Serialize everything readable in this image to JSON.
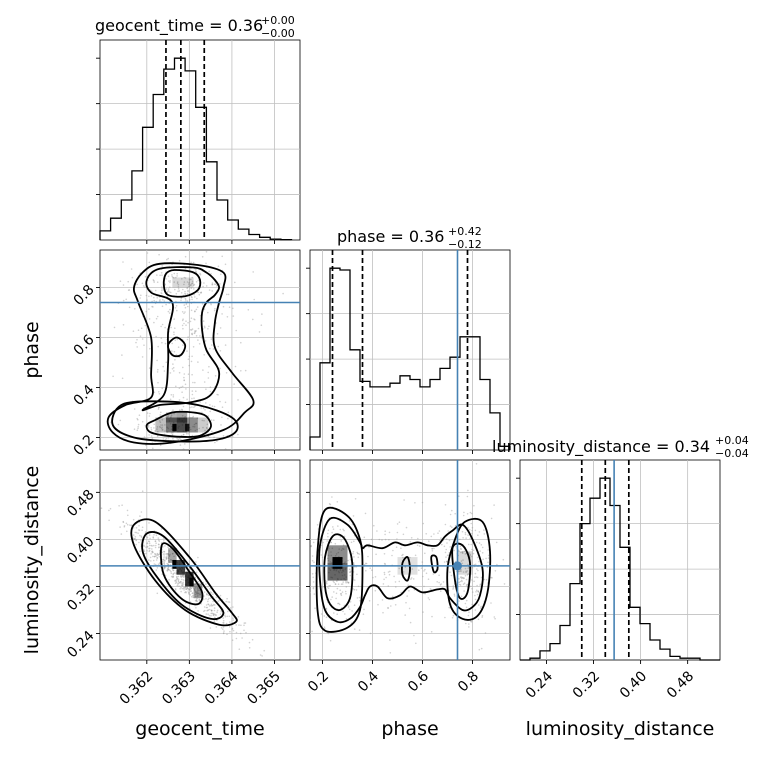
{
  "chart_data": {
    "type": "corner",
    "grid": true,
    "colors": {
      "truth": "#4682b4",
      "hist": "#000000",
      "quantile": "#000000",
      "grid": "#c0c0c0",
      "scatter": "#9a9a9a",
      "density_dark": "#000000"
    },
    "parameters": [
      "geocent_time",
      "phase",
      "luminosity_distance"
    ],
    "truths": {
      "geocent_time": null,
      "phase": 0.74,
      "luminosity_distance": 0.355
    },
    "titles": [
      {
        "param": "geocent_time",
        "label": "geocent_time = 0.36",
        "sup": "+0.00",
        "sub": "−0.00"
      },
      {
        "param": "phase",
        "label": "phase = 0.36",
        "sup": "+0.42",
        "sub": "−0.12"
      },
      {
        "param": "luminosity_distance",
        "label": "luminosity_distance = 0.34",
        "sup": "+0.04",
        "sub": "−0.04"
      }
    ],
    "axis_labels": {
      "geocent_time": "geocent_time",
      "phase": "phase",
      "luminosity_distance": "luminosity_distance"
    },
    "ranges": {
      "geocent_time": [
        0.3609,
        0.3656
      ],
      "phase": [
        0.15,
        0.95
      ],
      "luminosity_distance": [
        0.195,
        0.535
      ]
    },
    "ticks": {
      "geocent_time": [
        "0.362",
        "0.363",
        "0.364",
        "0.365"
      ],
      "phase_x": [
        "0.2",
        "0.4",
        "0.6",
        "0.8"
      ],
      "phase_y": [
        "0.2",
        "0.4",
        "0.6",
        "0.8"
      ],
      "luminosity_distance": [
        "0.24",
        "0.32",
        "0.40",
        "0.48"
      ]
    },
    "tick_values": {
      "geocent_time": [
        0.362,
        0.363,
        0.364,
        0.365
      ],
      "phase": [
        0.2,
        0.4,
        0.6,
        0.8
      ],
      "luminosity_distance": [
        0.24,
        0.32,
        0.4,
        0.48
      ]
    },
    "histograms": {
      "geocent_time": {
        "edges": [
          0.3609,
          0.36115,
          0.3614,
          0.36165,
          0.3619,
          0.36215,
          0.3624,
          0.36265,
          0.3629,
          0.36315,
          0.3634,
          0.36365,
          0.3639,
          0.36415,
          0.3644,
          0.36465,
          0.3649,
          0.36515,
          0.3654
        ],
        "counts": [
          5,
          12,
          22,
          38,
          62,
          80,
          94,
          100,
          93,
          73,
          43,
          22,
          11,
          6,
          3,
          1.5,
          0.5,
          0.2
        ],
        "quantiles": [
          0.36245,
          0.3628,
          0.36335
        ]
      },
      "phase": {
        "edges": [
          0.15,
          0.19,
          0.23,
          0.27,
          0.31,
          0.35,
          0.39,
          0.43,
          0.47,
          0.51,
          0.55,
          0.59,
          0.63,
          0.67,
          0.71,
          0.75,
          0.79,
          0.83,
          0.87,
          0.91,
          0.95
        ],
        "counts": [
          7,
          47,
          98,
          97,
          54,
          37,
          34,
          34,
          36,
          40,
          38,
          34,
          38,
          44,
          50,
          61,
          61,
          38,
          20,
          2
        ],
        "quantiles": [
          0.24,
          0.36,
          0.78
        ]
      },
      "luminosity_distance": {
        "edges": [
          0.195,
          0.212,
          0.229,
          0.246,
          0.263,
          0.28,
          0.297,
          0.314,
          0.331,
          0.348,
          0.365,
          0.382,
          0.399,
          0.416,
          0.433,
          0.45,
          0.467,
          0.484,
          0.501,
          0.518,
          0.535
        ],
        "counts": [
          0,
          1,
          5,
          9,
          19,
          42,
          75,
          89,
          100,
          85,
          62,
          29,
          20,
          11,
          6,
          2,
          1,
          1,
          0,
          0
        ],
        "quantiles": [
          0.3,
          0.34,
          0.38
        ]
      }
    },
    "contours": {
      "phase_vs_geocent_time": [
        {
          "level": 0.39,
          "x": [
            0.36245,
            0.36265,
            0.3631,
            0.36325,
            0.3632,
            0.3629,
            0.3625,
            0.3624,
            0.36245
          ],
          "y": [
            0.855,
            0.87,
            0.86,
            0.83,
            0.79,
            0.765,
            0.77,
            0.81,
            0.855
          ]
        },
        {
          "level": 0.39,
          "x": [
            0.3625,
            0.3627,
            0.3629,
            0.3628,
            0.3626,
            0.3625
          ],
          "y": [
            0.57,
            0.6,
            0.57,
            0.53,
            0.53,
            0.57
          ]
        },
        {
          "level": 0.39,
          "x": [
            0.3622,
            0.3626,
            0.3631,
            0.3634,
            0.3635,
            0.3632,
            0.3626,
            0.3621,
            0.362,
            0.3622
          ],
          "y": [
            0.27,
            0.3,
            0.3,
            0.285,
            0.24,
            0.205,
            0.205,
            0.22,
            0.25,
            0.27
          ]
        },
        {
          "level": 0.86,
          "x": [
            0.3623,
            0.3631,
            0.3634,
            0.3636,
            0.3637,
            0.3636,
            0.3634,
            0.3633,
            0.3633,
            0.3634,
            0.3637,
            0.3635,
            0.363,
            0.3623,
            0.3619,
            0.3624,
            0.3625,
            0.3625,
            0.3626,
            0.3621,
            0.362,
            0.3623
          ],
          "y": [
            0.875,
            0.88,
            0.86,
            0.83,
            0.8,
            0.77,
            0.74,
            0.7,
            0.63,
            0.55,
            0.46,
            0.37,
            0.34,
            0.33,
            0.31,
            0.37,
            0.5,
            0.62,
            0.74,
            0.78,
            0.83,
            0.875
          ]
        },
        {
          "level": 0.86,
          "x": [
            0.3614,
            0.3622,
            0.3632,
            0.364,
            0.3641,
            0.3636,
            0.3626,
            0.3617,
            0.3612,
            0.3614
          ],
          "y": [
            0.33,
            0.345,
            0.33,
            0.28,
            0.225,
            0.19,
            0.185,
            0.2,
            0.25,
            0.33
          ]
        },
        {
          "level": 0.96,
          "x": [
            0.3623,
            0.3632,
            0.3638,
            0.3638,
            0.3637,
            0.3636,
            0.3636,
            0.364,
            0.3645,
            0.3643,
            0.3638,
            0.3626,
            0.3617,
            0.3612,
            0.3611,
            0.3615,
            0.3621,
            0.3621,
            0.3621,
            0.3618,
            0.3617,
            0.3619,
            0.3623
          ],
          "y": [
            0.895,
            0.89,
            0.86,
            0.8,
            0.74,
            0.66,
            0.56,
            0.46,
            0.35,
            0.3,
            0.23,
            0.18,
            0.18,
            0.22,
            0.28,
            0.33,
            0.36,
            0.45,
            0.6,
            0.74,
            0.8,
            0.86,
            0.895
          ]
        }
      ],
      "luminosity_distance_vs_geocent_time": [
        {
          "level": 0.39,
          "x": [
            0.36235,
            0.3626,
            0.363,
            0.3633,
            0.3632,
            0.3628,
            0.3624,
            0.36235
          ],
          "y": [
            0.39,
            0.385,
            0.345,
            0.31,
            0.29,
            0.3,
            0.34,
            0.39
          ]
        },
        {
          "level": 0.86,
          "x": [
            0.362,
            0.3624,
            0.363,
            0.3635,
            0.3638,
            0.3635,
            0.3628,
            0.3622,
            0.3619,
            0.362
          ],
          "y": [
            0.41,
            0.405,
            0.355,
            0.305,
            0.275,
            0.265,
            0.29,
            0.34,
            0.38,
            0.41
          ]
        },
        {
          "level": 0.96,
          "x": [
            0.3617,
            0.3622,
            0.363,
            0.3636,
            0.364,
            0.3641,
            0.3637,
            0.3629,
            0.3622,
            0.3617,
            0.3617
          ],
          "y": [
            0.425,
            0.43,
            0.37,
            0.31,
            0.275,
            0.26,
            0.255,
            0.28,
            0.33,
            0.39,
            0.425
          ]
        }
      ],
      "luminosity_distance_vs_phase": [
        {
          "level": 0.39,
          "x": [
            0.24,
            0.28,
            0.31,
            0.32,
            0.31,
            0.27,
            0.23,
            0.21,
            0.21,
            0.24
          ],
          "y": [
            0.405,
            0.405,
            0.38,
            0.35,
            0.3,
            0.28,
            0.29,
            0.32,
            0.37,
            0.405
          ]
        },
        {
          "level": 0.39,
          "x": [
            0.72,
            0.76,
            0.79,
            0.78,
            0.75,
            0.73,
            0.72
          ],
          "y": [
            0.385,
            0.39,
            0.36,
            0.31,
            0.3,
            0.33,
            0.385
          ]
        },
        {
          "level": 0.39,
          "x": [
            0.52,
            0.54,
            0.55,
            0.54,
            0.52,
            0.52
          ],
          "y": [
            0.36,
            0.37,
            0.35,
            0.33,
            0.34,
            0.36
          ]
        },
        {
          "level": 0.39,
          "x": [
            0.635,
            0.655,
            0.66,
            0.645,
            0.635
          ],
          "y": [
            0.37,
            0.37,
            0.35,
            0.345,
            0.37
          ]
        },
        {
          "level": 0.86,
          "x": [
            0.23,
            0.3,
            0.35,
            0.36,
            0.38,
            0.44,
            0.49,
            0.53,
            0.58,
            0.62,
            0.66,
            0.69,
            0.72,
            0.76,
            0.8,
            0.84,
            0.83,
            0.8,
            0.76,
            0.71,
            0.69,
            0.66,
            0.6,
            0.55,
            0.51,
            0.46,
            0.42,
            0.39,
            0.37,
            0.35,
            0.31,
            0.26,
            0.21,
            0.19,
            0.19,
            0.23
          ],
          "y": [
            0.435,
            0.425,
            0.395,
            0.385,
            0.39,
            0.385,
            0.395,
            0.39,
            0.395,
            0.39,
            0.39,
            0.405,
            0.415,
            0.425,
            0.4,
            0.35,
            0.305,
            0.285,
            0.28,
            0.3,
            0.315,
            0.315,
            0.31,
            0.32,
            0.305,
            0.3,
            0.32,
            0.32,
            0.305,
            0.285,
            0.265,
            0.26,
            0.28,
            0.33,
            0.39,
            0.435
          ]
        },
        {
          "level": 0.96,
          "x": [
            0.21,
            0.3,
            0.35,
            0.36,
            0.35,
            0.3,
            0.21,
            0.18,
            0.18,
            0.21
          ],
          "y": [
            0.45,
            0.44,
            0.4,
            0.35,
            0.28,
            0.25,
            0.245,
            0.28,
            0.38,
            0.45
          ]
        },
        {
          "level": 0.96,
          "x": [
            0.77,
            0.84,
            0.87,
            0.86,
            0.82,
            0.76,
            0.71,
            0.7,
            0.73,
            0.77
          ],
          "y": [
            0.43,
            0.43,
            0.38,
            0.31,
            0.27,
            0.265,
            0.29,
            0.35,
            0.4,
            0.43
          ]
        }
      ]
    },
    "density_cells": {
      "phase_vs_geocent_time": [
        {
          "x": 0.3622,
          "y": 0.22,
          "w": 0.00025,
          "h": 0.06,
          "v": 0.25
        },
        {
          "x": 0.36245,
          "y": 0.22,
          "w": 0.00025,
          "h": 0.06,
          "v": 0.55
        },
        {
          "x": 0.3627,
          "y": 0.22,
          "w": 0.00025,
          "h": 0.06,
          "v": 0.7
        },
        {
          "x": 0.36295,
          "y": 0.22,
          "w": 0.00025,
          "h": 0.06,
          "v": 0.45
        },
        {
          "x": 0.3632,
          "y": 0.22,
          "w": 0.00025,
          "h": 0.06,
          "v": 0.2
        },
        {
          "x": 0.36245,
          "y": 0.26,
          "w": 0.00025,
          "h": 0.04,
          "v": 0.3
        },
        {
          "x": 0.3627,
          "y": 0.26,
          "w": 0.00025,
          "h": 0.04,
          "v": 0.35
        },
        {
          "x": 0.3626,
          "y": 0.225,
          "w": 0.0001,
          "h": 0.03,
          "v": 1.0
        },
        {
          "x": 0.3629,
          "y": 0.225,
          "w": 0.0001,
          "h": 0.03,
          "v": 0.85
        },
        {
          "x": 0.3626,
          "y": 0.8,
          "w": 0.0005,
          "h": 0.04,
          "v": 0.15
        }
      ],
      "luminosity_distance_vs_geocent_time": [
        {
          "x": 0.3625,
          "y": 0.36,
          "w": 0.0002,
          "h": 0.025,
          "v": 0.35
        },
        {
          "x": 0.3627,
          "y": 0.34,
          "w": 0.0002,
          "h": 0.025,
          "v": 0.75
        },
        {
          "x": 0.3629,
          "y": 0.32,
          "w": 0.0002,
          "h": 0.025,
          "v": 0.8
        },
        {
          "x": 0.3631,
          "y": 0.3,
          "w": 0.0002,
          "h": 0.025,
          "v": 0.4
        },
        {
          "x": 0.3626,
          "y": 0.35,
          "w": 0.0001,
          "h": 0.015,
          "v": 1.0
        },
        {
          "x": 0.363,
          "y": 0.32,
          "w": 0.0001,
          "h": 0.015,
          "v": 0.9
        }
      ],
      "luminosity_distance_vs_phase": [
        {
          "x": 0.22,
          "y": 0.36,
          "w": 0.08,
          "h": 0.03,
          "v": 0.45
        },
        {
          "x": 0.22,
          "y": 0.33,
          "w": 0.08,
          "h": 0.03,
          "v": 0.6
        },
        {
          "x": 0.24,
          "y": 0.35,
          "w": 0.04,
          "h": 0.02,
          "v": 1.0
        },
        {
          "x": 0.74,
          "y": 0.34,
          "w": 0.06,
          "h": 0.04,
          "v": 0.15
        },
        {
          "x": 0.5,
          "y": 0.34,
          "w": 0.08,
          "h": 0.03,
          "v": 0.12
        }
      ]
    },
    "scatter_seed": 7
  }
}
